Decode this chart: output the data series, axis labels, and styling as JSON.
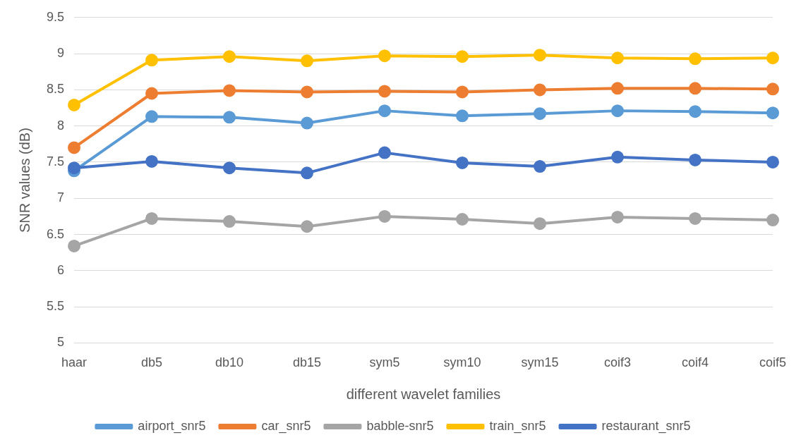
{
  "chart_data": {
    "type": "line",
    "xlabel": "different wavelet families",
    "ylabel": "SNR values (dB)",
    "categories": [
      "haar",
      "db5",
      "db10",
      "db15",
      "sym5",
      "sym10",
      "sym15",
      "coif3",
      "coif4",
      "coif5"
    ],
    "series": [
      {
        "name": "airport_snr5",
        "color": "#5b9bd5",
        "values": [
          7.38,
          8.13,
          8.12,
          8.04,
          8.21,
          8.14,
          8.17,
          8.21,
          8.2,
          8.18
        ]
      },
      {
        "name": "car_snr5",
        "color": "#ed7d31",
        "values": [
          7.7,
          8.45,
          8.49,
          8.47,
          8.48,
          8.47,
          8.5,
          8.52,
          8.52,
          8.51
        ]
      },
      {
        "name": "babble-snr5",
        "color": "#a5a5a5",
        "values": [
          6.34,
          6.72,
          6.68,
          6.61,
          6.75,
          6.71,
          6.65,
          6.74,
          6.72,
          6.7
        ]
      },
      {
        "name": "train_snr5",
        "color": "#ffc000",
        "values": [
          8.29,
          8.91,
          8.96,
          8.9,
          8.97,
          8.96,
          8.98,
          8.94,
          8.93,
          8.94
        ]
      },
      {
        "name": "restaurant_snr5",
        "color": "#4472c4",
        "values": [
          7.42,
          7.51,
          7.42,
          7.35,
          7.63,
          7.49,
          7.44,
          7.57,
          7.53,
          7.5
        ]
      }
    ],
    "ylim": [
      5,
      9.5
    ],
    "yticks": [
      5,
      5.5,
      6,
      6.5,
      7,
      7.5,
      8,
      8.5,
      9,
      9.5
    ],
    "grid": "y",
    "legend": "bottom",
    "marker": "circle",
    "line_style": "solid"
  }
}
